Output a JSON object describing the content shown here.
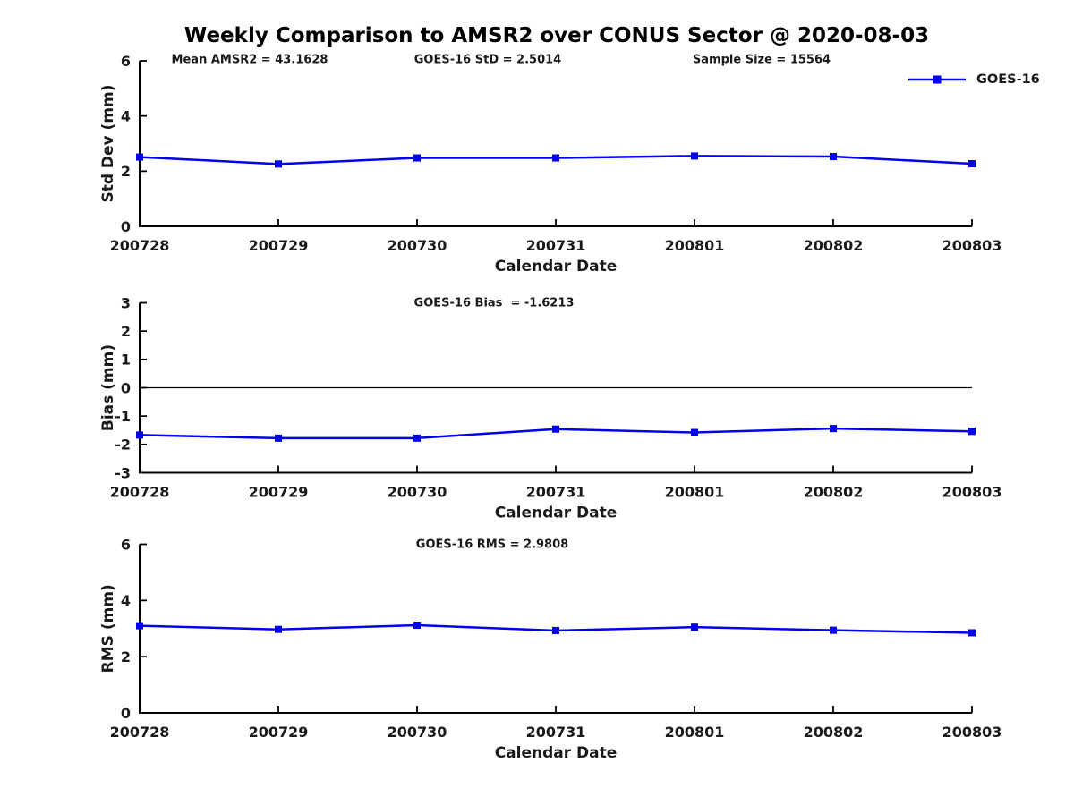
{
  "title": "Weekly Comparison to AMSR2 over CONUS Sector @ 2020-08-03",
  "legend": {
    "label": "GOES-16",
    "position": "top-right"
  },
  "colors": {
    "line": "#0000EE",
    "text": "#1a1a1a",
    "axis": "#000000",
    "background": "#ffffff"
  },
  "chart_data": [
    {
      "type": "line",
      "name": "stddev",
      "ylabel": "Std Dev (mm)",
      "xlabel": "Calendar Date",
      "categories": [
        "200728",
        "200729",
        "200730",
        "200731",
        "200801",
        "200802",
        "200803"
      ],
      "series": [
        {
          "name": "GOES-16",
          "values": [
            2.51,
            2.26,
            2.48,
            2.48,
            2.55,
            2.53,
            2.27
          ]
        }
      ],
      "ylim": [
        0,
        6
      ],
      "yticks": [
        0,
        2,
        4,
        6
      ],
      "grid": false,
      "zero_line": false,
      "marker": "square",
      "annotations": [
        "Mean AMSR2 = 43.1628",
        "GOES-16 StD = 2.5014",
        "Sample Size = 15564"
      ]
    },
    {
      "type": "line",
      "name": "bias",
      "ylabel": "Bias (mm)",
      "xlabel": "Calendar Date",
      "categories": [
        "200728",
        "200729",
        "200730",
        "200731",
        "200801",
        "200802",
        "200803"
      ],
      "series": [
        {
          "name": "GOES-16",
          "values": [
            -1.67,
            -1.78,
            -1.78,
            -1.46,
            -1.58,
            -1.44,
            -1.54
          ]
        }
      ],
      "ylim": [
        -3,
        3
      ],
      "yticks": [
        3,
        2,
        1,
        0,
        -1,
        -2,
        -3
      ],
      "grid": false,
      "zero_line": true,
      "marker": "square",
      "annotations": [
        "GOES-16 Bias  = -1.6213"
      ]
    },
    {
      "type": "line",
      "name": "rms",
      "ylabel": "RMS (mm)",
      "xlabel": "Calendar Date",
      "categories": [
        "200728",
        "200729",
        "200730",
        "200731",
        "200801",
        "200802",
        "200803"
      ],
      "series": [
        {
          "name": "GOES-16",
          "values": [
            3.1,
            2.97,
            3.12,
            2.93,
            3.05,
            2.94,
            2.85
          ]
        }
      ],
      "ylim": [
        0,
        6
      ],
      "yticks": [
        0,
        2,
        4,
        6
      ],
      "grid": false,
      "zero_line": false,
      "marker": "square",
      "annotations": [
        "GOES-16 RMS = 2.9808"
      ]
    }
  ]
}
